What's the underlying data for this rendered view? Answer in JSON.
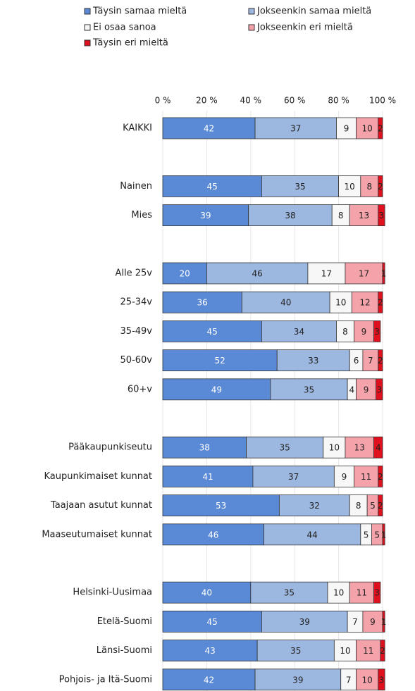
{
  "chart_data": {
    "type": "stacked_bar_horizontal",
    "categories": [
      "KAIKKI",
      null,
      "Nainen",
      "Mies",
      null,
      "Alle 25v",
      "25-34v",
      "35-49v",
      "50-60v",
      "60+v",
      null,
      "Pääkaupunkiseutu",
      "Kaupunkimaiset kunnat",
      "Taajaan asutut kunnat",
      "Maaseutumaiset kunnat",
      null,
      "Helsinki-Uusimaa",
      "Etelä-Suomi",
      "Länsi-Suomi",
      "Pohjois- ja Itä-Suomi"
    ],
    "series": [
      {
        "name": "Täysin samaa mieltä",
        "color": "#5a8ad6",
        "values": [
          42,
          null,
          45,
          39,
          null,
          20,
          36,
          45,
          52,
          49,
          null,
          38,
          41,
          53,
          46,
          null,
          40,
          45,
          43,
          42
        ]
      },
      {
        "name": "Jokseenkin samaa mieltä",
        "color": "#9db8e0",
        "values": [
          37,
          null,
          35,
          38,
          null,
          46,
          40,
          34,
          33,
          35,
          null,
          35,
          37,
          32,
          44,
          null,
          35,
          39,
          35,
          39
        ]
      },
      {
        "name": "Ei osaa sanoa",
        "color": "#f7f7f7",
        "values": [
          9,
          null,
          10,
          8,
          null,
          17,
          10,
          8,
          6,
          4,
          null,
          10,
          9,
          8,
          5,
          null,
          10,
          7,
          10,
          7
        ]
      },
      {
        "name": "Jokseenkin eri mieltä",
        "color": "#f5a3aa",
        "values": [
          10,
          null,
          8,
          13,
          null,
          17,
          12,
          9,
          7,
          9,
          null,
          13,
          11,
          5,
          5,
          null,
          11,
          9,
          11,
          10
        ]
      },
      {
        "name": "Täysin eri mieltä",
        "color": "#e0111f",
        "values": [
          2,
          null,
          2,
          3,
          null,
          1,
          2,
          3,
          2,
          3,
          null,
          4,
          2,
          2,
          1,
          null,
          3,
          1,
          2,
          3
        ]
      }
    ],
    "xlim": [
      0,
      100
    ],
    "xticks": [
      {
        "value": 0,
        "label": "0 %"
      },
      {
        "value": 20,
        "label": "20 %"
      },
      {
        "value": 40,
        "label": "40 %"
      },
      {
        "value": 60,
        "label": "60 %"
      },
      {
        "value": 80,
        "label": "80 %"
      },
      {
        "value": 100,
        "label": "100 %"
      }
    ],
    "grid": true,
    "legend": "top"
  }
}
